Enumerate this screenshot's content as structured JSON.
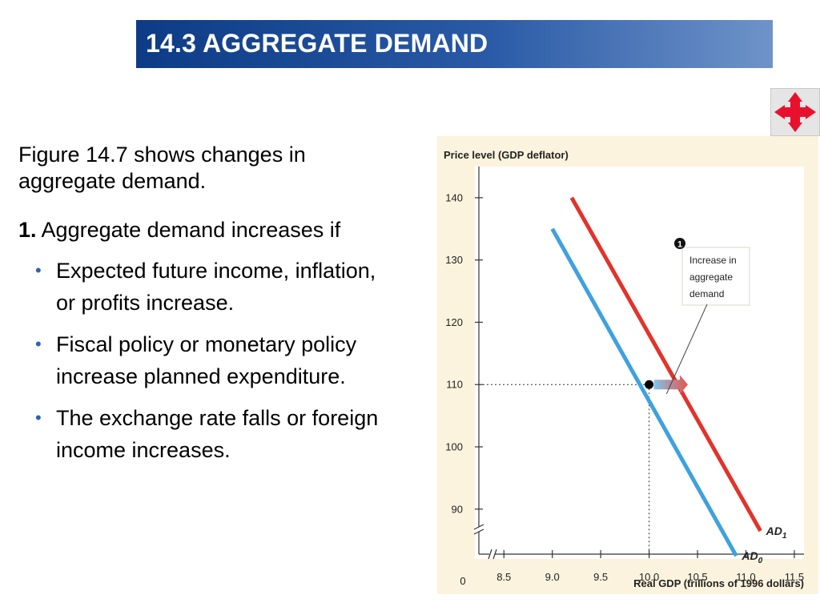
{
  "header": {
    "title": "14.3 AGGREGATE DEMAND"
  },
  "nav": {
    "icon": "four-way-arrow-icon",
    "color": "#e8112d"
  },
  "body_text": {
    "intro": "Figure 14.7 shows changes in aggregate demand.",
    "point_number": "1.",
    "point_text": "Aggregate demand increases if",
    "bullets": [
      "Expected future income, inflation, or profits increase.",
      "Fiscal policy or monetary policy increase planned expenditure.",
      "The exchange rate falls or foreign income increases."
    ]
  },
  "chart_data": {
    "type": "line",
    "ylabel": "Price level (GDP deflator)",
    "xlabel": "Real GDP (trillions of 1996 dollars)",
    "xlim": [
      8.2,
      11.6
    ],
    "ylim": [
      82,
      145
    ],
    "x_origin_label": "0",
    "x_ticks": [
      8.5,
      9.0,
      9.5,
      10.0,
      10.5,
      11.0,
      11.5
    ],
    "x_tick_labels": [
      "8.5",
      "9.0",
      "9.5",
      "10.0",
      "10.5",
      "11.0",
      "11.5"
    ],
    "y_ticks": [
      90,
      100,
      110,
      120,
      130,
      140
    ],
    "y_tick_labels": [
      "90",
      "100",
      "110",
      "120",
      "130",
      "140"
    ],
    "axis_breaks": true,
    "series": [
      {
        "name": "AD₀",
        "label_main": "AD",
        "label_sub": "0",
        "color": "#3fa1de",
        "x": [
          9.0,
          10.9
        ],
        "y": [
          135,
          82.5
        ]
      },
      {
        "name": "AD₁",
        "label_main": "AD",
        "label_sub": "1",
        "color": "#e2332b",
        "x": [
          9.2,
          11.15
        ],
        "y": [
          140,
          86.5
        ]
      }
    ],
    "highlight_point": {
      "x": 10.0,
      "y": 110
    },
    "annotation": {
      "marker": "1",
      "lines": [
        "Increase in",
        "aggregate",
        "demand"
      ],
      "arrow_from": {
        "x": 10.0,
        "y": 110
      },
      "arrow_to": {
        "x": 10.4,
        "y": 110
      }
    },
    "colors": {
      "plot_bg": "#ffffff",
      "panel_bg": "#fbf3dd",
      "guide": "#333333"
    }
  }
}
